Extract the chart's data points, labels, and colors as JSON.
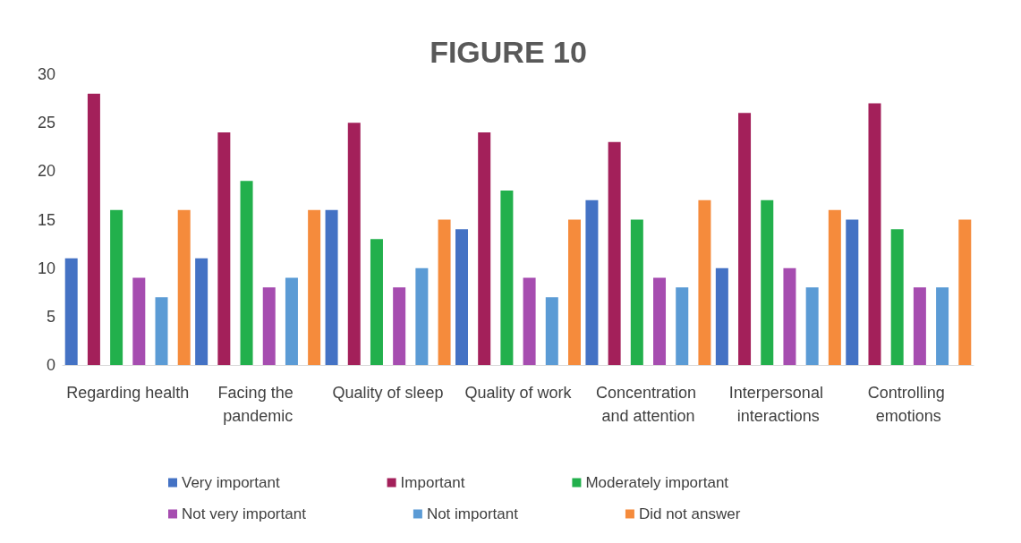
{
  "chart_data": {
    "type": "bar",
    "title": "FIGURE 10",
    "categories": [
      "Regarding health",
      "Facing the pandemic",
      "Quality of sleep",
      "Quality of work",
      "Concentration and attention",
      "Interpersonal interactions",
      "Controlling emotions"
    ],
    "series": [
      {
        "name": "Very important",
        "color": "#4472c4",
        "values": [
          11,
          11,
          16,
          14,
          17,
          10,
          15
        ]
      },
      {
        "name": "Important",
        "color": "#a3205a",
        "values": [
          28,
          24,
          25,
          24,
          23,
          26,
          27
        ]
      },
      {
        "name": "Moderately important",
        "color": "#22b04c",
        "values": [
          16,
          19,
          13,
          18,
          15,
          17,
          14
        ]
      },
      {
        "name": "Not very important",
        "color": "#a64db0",
        "values": [
          9,
          8,
          8,
          9,
          9,
          10,
          8
        ]
      },
      {
        "name": "Not important",
        "color": "#5b9bd5",
        "values": [
          7,
          9,
          10,
          7,
          8,
          8,
          8
        ]
      },
      {
        "name": "Did not answer",
        "color": "#f58b3c",
        "values": [
          16,
          16,
          15,
          15,
          17,
          16,
          15
        ]
      }
    ],
    "ylim": [
      0,
      30
    ],
    "yticks": [
      0,
      5,
      10,
      15,
      20,
      25,
      30
    ],
    "grid": false,
    "legend": "bottom"
  }
}
